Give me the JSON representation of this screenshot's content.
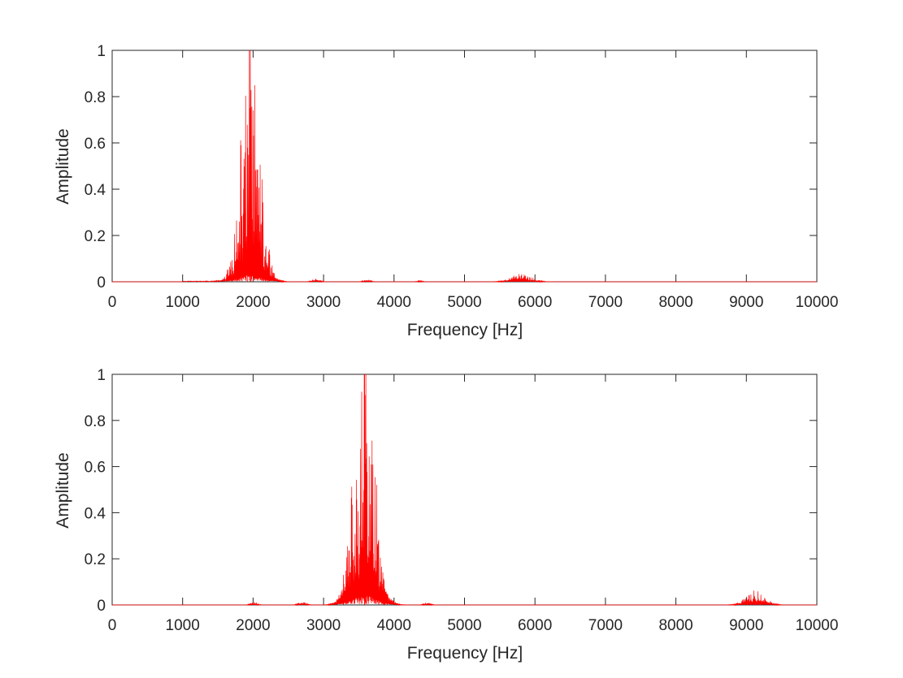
{
  "chart_data": [
    {
      "type": "line",
      "title": "",
      "xlabel": "Frequency [Hz]",
      "ylabel": "Amplitude",
      "xlim": [
        0,
        10000
      ],
      "ylim": [
        0,
        1
      ],
      "xticks": [
        "0",
        "1000",
        "2000",
        "3000",
        "4000",
        "5000",
        "6000",
        "7000",
        "8000",
        "9000",
        "10000"
      ],
      "yticks": [
        "0",
        "0.2",
        "0.4",
        "0.6",
        "0.8",
        "1"
      ],
      "grid": false,
      "line_color": "#ff0000",
      "series": [
        {
          "peaks": [
            {
              "center": 1960,
              "width": 400,
              "amplitude": 1.0,
              "floor": 0.14
            },
            {
              "center": 2890,
              "width": 150,
              "amplitude": 0.012,
              "floor": 0.004
            },
            {
              "center": 3620,
              "width": 140,
              "amplitude": 0.008,
              "floor": 0.003
            },
            {
              "center": 4370,
              "width": 100,
              "amplitude": 0.005,
              "floor": 0.002
            },
            {
              "center": 5800,
              "width": 400,
              "amplitude": 0.025,
              "floor": 0.01
            }
          ],
          "noise_band": [
            1000,
            2400
          ]
        }
      ]
    },
    {
      "type": "line",
      "title": "",
      "xlabel": "Frequency [Hz]",
      "ylabel": "Amplitude",
      "xlim": [
        0,
        10000
      ],
      "ylim": [
        0,
        1
      ],
      "xticks": [
        "0",
        "1000",
        "2000",
        "3000",
        "4000",
        "5000",
        "6000",
        "7000",
        "8000",
        "9000",
        "10000"
      ],
      "yticks": [
        "0",
        "0.2",
        "0.4",
        "0.6",
        "0.8",
        "1"
      ],
      "grid": false,
      "line_color": "#ff0000",
      "series": [
        {
          "peaks": [
            {
              "center": 2010,
              "width": 140,
              "amplitude": 0.01,
              "floor": 0.003
            },
            {
              "center": 2700,
              "width": 160,
              "amplitude": 0.012,
              "floor": 0.004
            },
            {
              "center": 3580,
              "width": 420,
              "amplitude": 1.0,
              "floor": 0.2
            },
            {
              "center": 4470,
              "width": 140,
              "amplitude": 0.008,
              "floor": 0.003
            },
            {
              "center": 9130,
              "width": 380,
              "amplitude": 0.05,
              "floor": 0.015
            }
          ],
          "noise_band": [
            3200,
            4000
          ]
        }
      ]
    }
  ]
}
